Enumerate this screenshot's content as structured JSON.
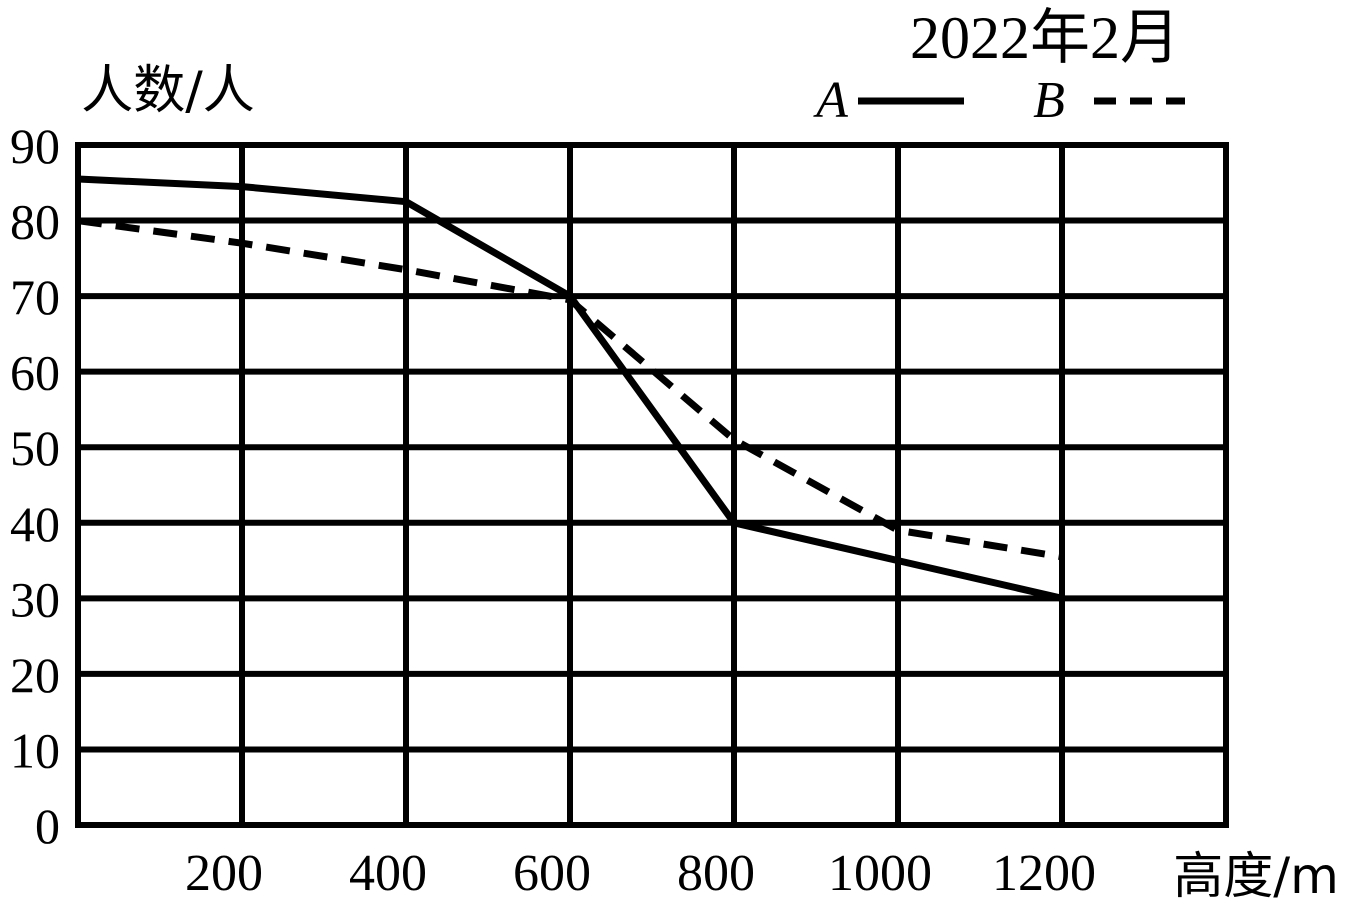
{
  "chart_data": {
    "type": "line",
    "title": "2022年2月",
    "ylabel": "人数/人",
    "xlabel": "高度/m",
    "x_ticks": [
      200,
      400,
      600,
      800,
      1000,
      1200
    ],
    "y_ticks": [
      0,
      10,
      20,
      30,
      40,
      50,
      60,
      70,
      80,
      90
    ],
    "xlim": [
      0,
      1400
    ],
    "ylim": [
      0,
      90
    ],
    "grid": true,
    "legend_position": "top-right",
    "series": [
      {
        "name": "A",
        "style": "solid",
        "color": "#000000",
        "points": [
          [
            0,
            85.5
          ],
          [
            200,
            84.5
          ],
          [
            400,
            82.5
          ],
          [
            600,
            70
          ],
          [
            800,
            40
          ],
          [
            1000,
            35
          ],
          [
            1200,
            30
          ]
        ]
      },
      {
        "name": "B",
        "style": "dashed",
        "color": "#000000",
        "points": [
          [
            0,
            80
          ],
          [
            200,
            77
          ],
          [
            400,
            73.5
          ],
          [
            600,
            69.5
          ],
          [
            800,
            51
          ],
          [
            1000,
            39
          ],
          [
            1200,
            35.5
          ]
        ]
      }
    ]
  }
}
